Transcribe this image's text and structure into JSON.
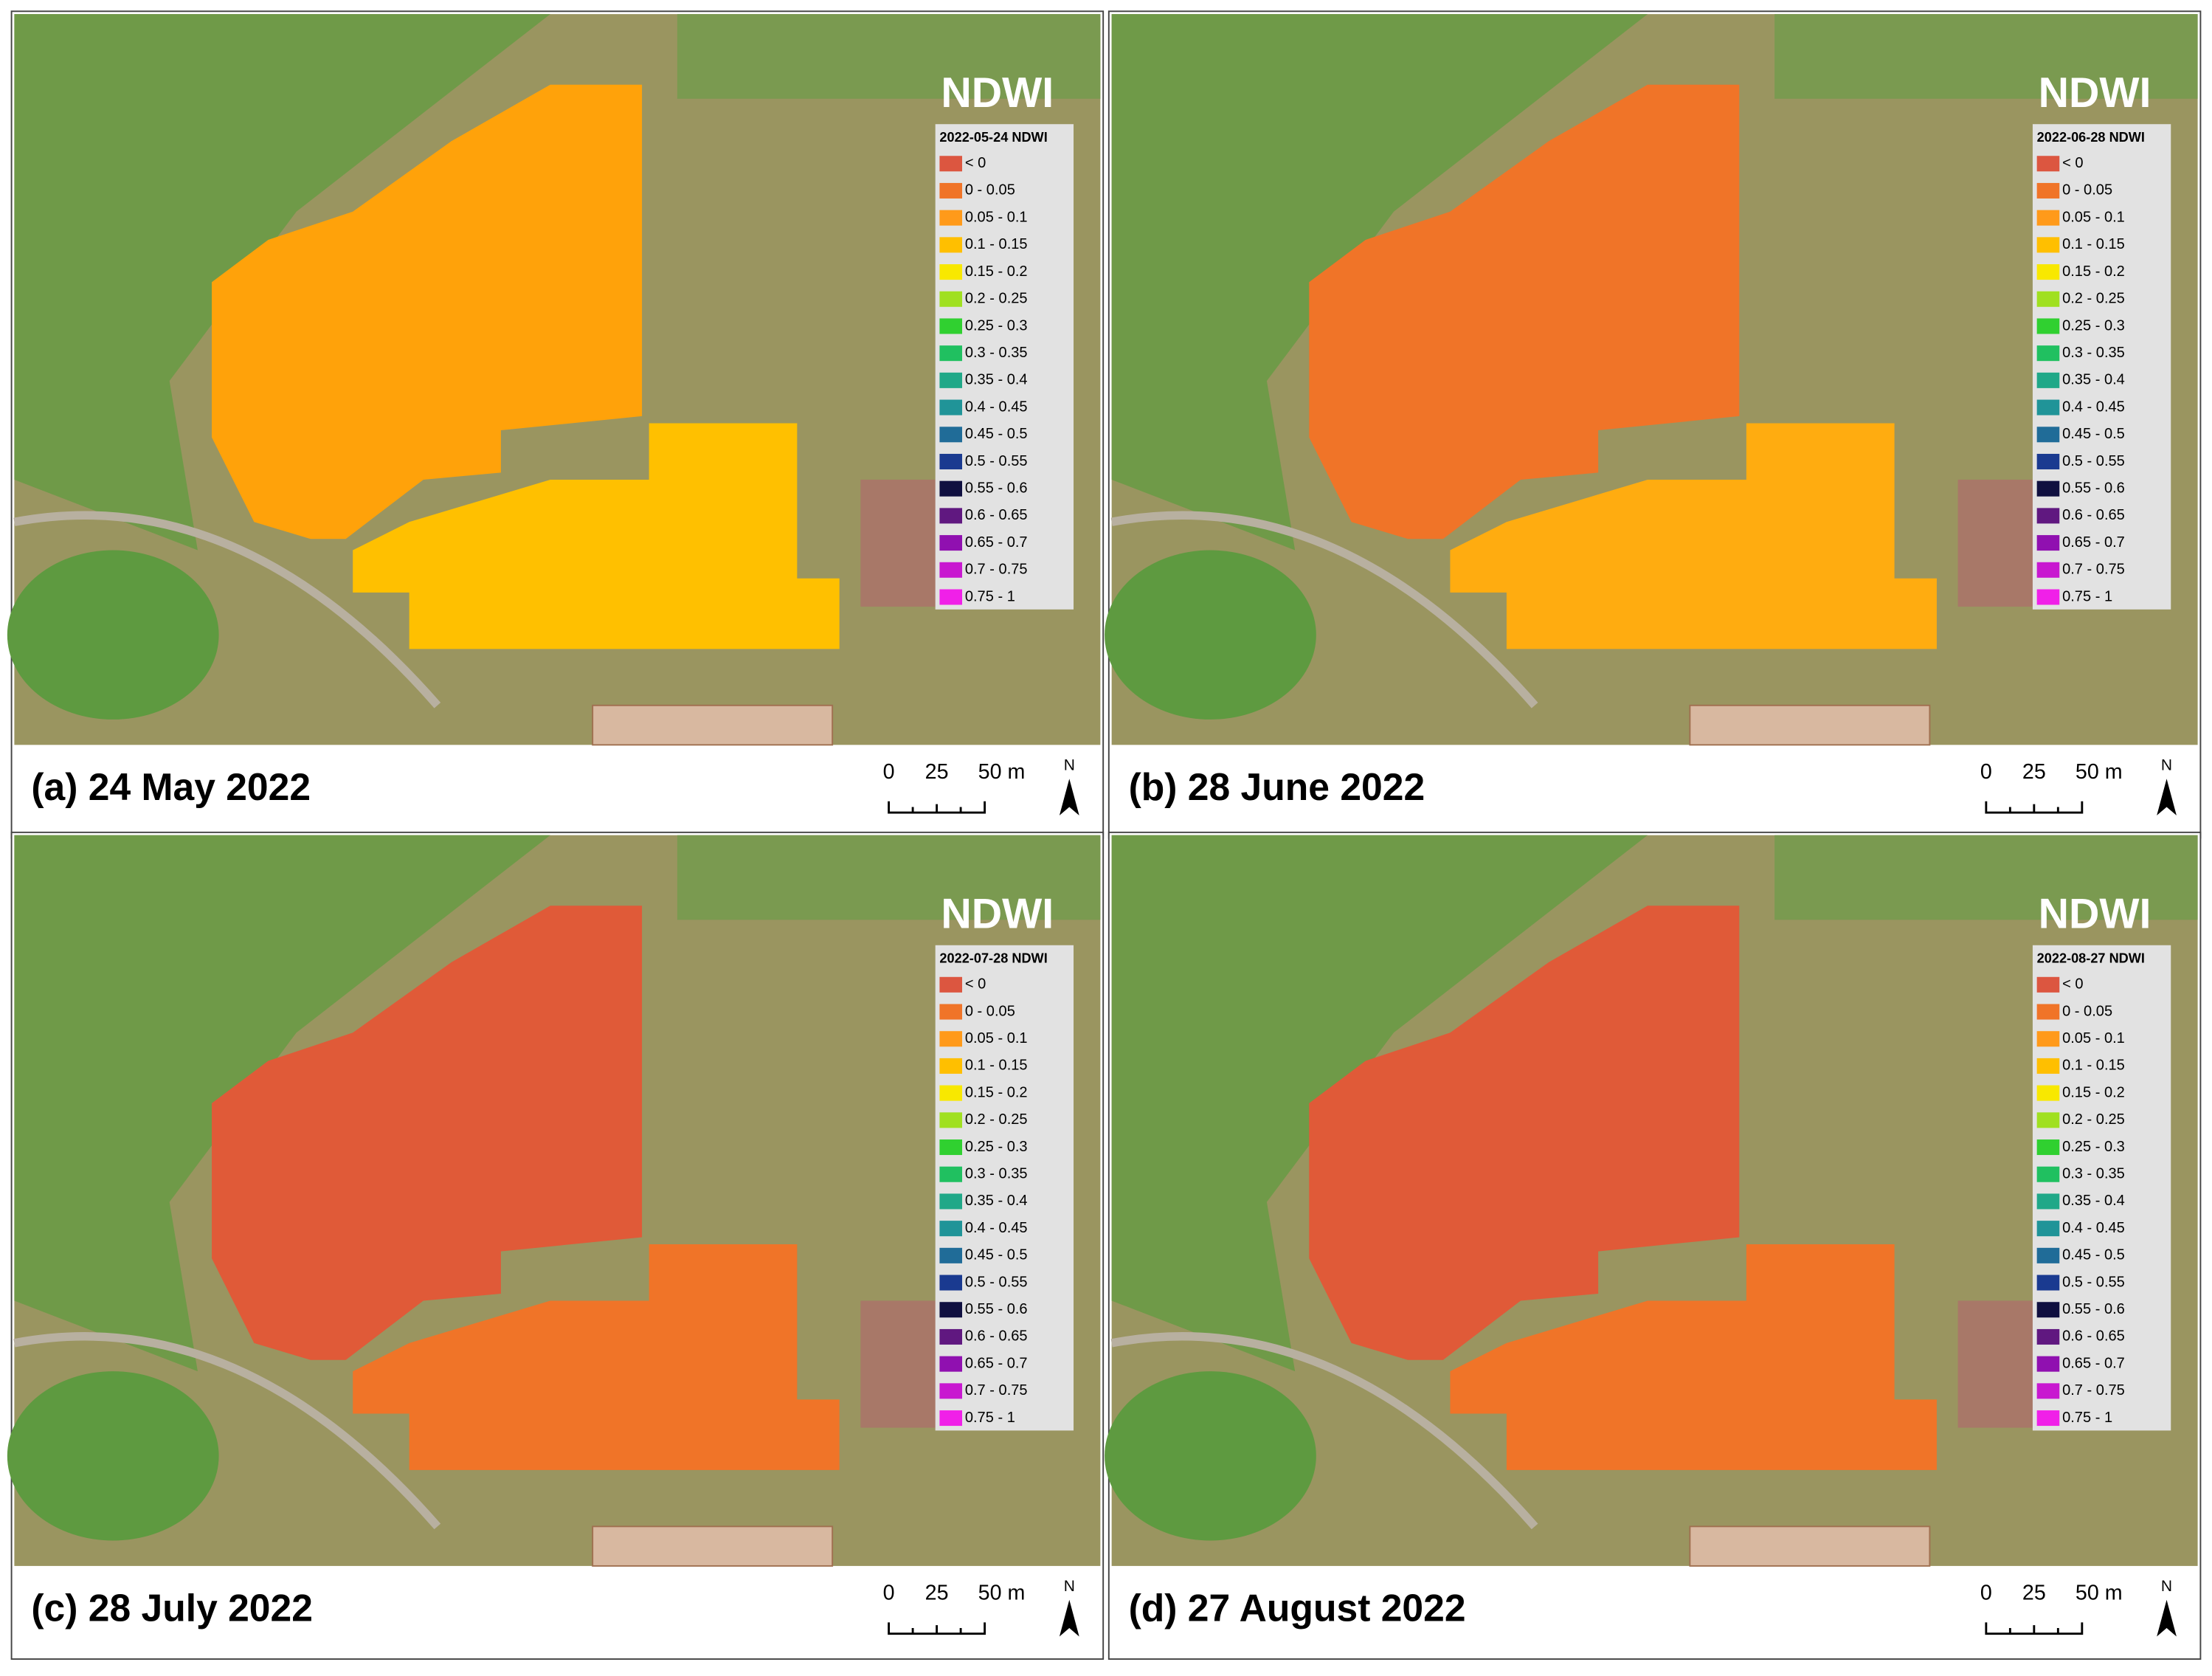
{
  "legend": [
    {
      "label": "< 0",
      "color": "#dc5640"
    },
    {
      "label": "0 - 0.05",
      "color": "#f07428"
    },
    {
      "label": "0.05 - 0.1",
      "color": "#ff9a1a"
    },
    {
      "label": "0.1 - 0.15",
      "color": "#ffbf00"
    },
    {
      "label": "0.15 - 0.2",
      "color": "#f8e800"
    },
    {
      "label": "0.2 - 0.25",
      "color": "#a0e020"
    },
    {
      "label": "0.25 - 0.3",
      "color": "#30d030"
    },
    {
      "label": "0.3 - 0.35",
      "color": "#20c060"
    },
    {
      "label": "0.35 - 0.4",
      "color": "#20a888"
    },
    {
      "label": "0.4 - 0.45",
      "color": "#209498"
    },
    {
      "label": "0.45 - 0.5",
      "color": "#206c98"
    },
    {
      "label": "0.5 - 0.55",
      "color": "#1a3a90"
    },
    {
      "label": "0.55 - 0.6",
      "color": "#101040"
    },
    {
      "label": "0.6 - 0.65",
      "color": "#601880"
    },
    {
      "label": "0.65 - 0.7",
      "color": "#9010b0"
    },
    {
      "label": "0.7 - 0.75",
      "color": "#c818d0"
    },
    {
      "label": "0.75 - 1",
      "color": "#f020e8"
    }
  ],
  "legend_title": "NDWI",
  "scale_labels": [
    "0",
    "25",
    "50 m"
  ],
  "north": "N",
  "panels": [
    {
      "caption": "(a) 24 May 2022",
      "legend_header": "2022-05-24 NDWI",
      "field_colors": [
        "#ffa20a",
        "#ffc000"
      ]
    },
    {
      "caption": "(b) 28 June 2022",
      "legend_header": "2022-06-28 NDWI",
      "field_colors": [
        "#f07428",
        "#ffac10"
      ]
    },
    {
      "caption": "(c) 28 July 2022",
      "legend_header": "2022-07-28 NDWI",
      "field_colors": [
        "#e05a38",
        "#f07428"
      ]
    },
    {
      "caption": "(d) 27 August 2022",
      "legend_header": "2022-08-27 NDWI",
      "field_colors": [
        "#e05a38",
        "#f07428"
      ]
    }
  ]
}
